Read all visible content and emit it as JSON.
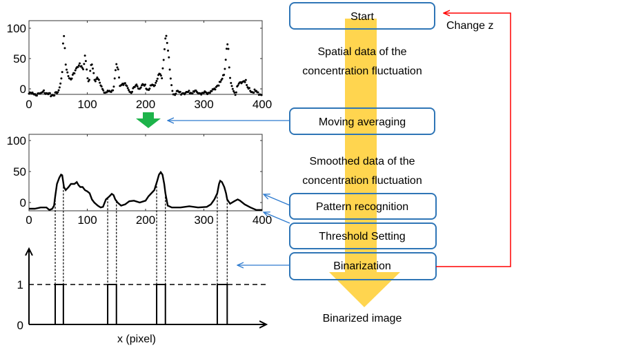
{
  "flowchart": {
    "steps": [
      {
        "label": "Start"
      },
      {
        "label": "Moving averaging"
      },
      {
        "label": "Pattern recognition"
      },
      {
        "label": "Threshold Setting"
      },
      {
        "label": "Binarization"
      }
    ],
    "notes": {
      "spatial_line1": "Spatial data of the",
      "spatial_line2": "concentration fluctuation",
      "smoothed_line1": "Smoothed data of the",
      "smoothed_line2": "concentration fluctuation",
      "output": "Binarized image"
    },
    "loop_label": "Change z",
    "colors": {
      "box": "#2E75B6",
      "flow_arrow": "#FFD54F",
      "loop": "#FF0000",
      "pointer": "#2E7BCF",
      "down_arrow": "#1DB34A"
    }
  },
  "chart_data": [
    {
      "type": "scatter",
      "xlim": [
        0,
        400
      ],
      "ylim": [
        -10,
        110
      ],
      "xticks": [
        "0",
        "100",
        "200",
        "300",
        "400"
      ],
      "yticks": [
        "0",
        "50",
        "100"
      ],
      "points": [
        [
          0,
          -8
        ],
        [
          10,
          -8
        ],
        [
          20,
          -10
        ],
        [
          25,
          0
        ],
        [
          30,
          -10
        ],
        [
          40,
          -10
        ],
        [
          50,
          -7
        ],
        [
          55,
          15
        ],
        [
          57,
          30
        ],
        [
          58,
          60
        ],
        [
          59,
          95
        ],
        [
          61,
          78
        ],
        [
          62,
          55
        ],
        [
          63,
          40
        ],
        [
          65,
          28
        ],
        [
          68,
          20
        ],
        [
          72,
          18
        ],
        [
          78,
          25
        ],
        [
          82,
          35
        ],
        [
          87,
          44
        ],
        [
          90,
          35
        ],
        [
          93,
          30
        ],
        [
          96,
          52
        ],
        [
          98,
          45
        ],
        [
          100,
          22
        ],
        [
          103,
          12
        ],
        [
          107,
          42
        ],
        [
          110,
          30
        ],
        [
          113,
          12
        ],
        [
          116,
          18
        ],
        [
          118,
          20
        ],
        [
          122,
          8
        ],
        [
          125,
          0
        ],
        [
          130,
          -5
        ],
        [
          140,
          -6
        ],
        [
          145,
          2
        ],
        [
          148,
          25
        ],
        [
          150,
          38
        ],
        [
          153,
          30
        ],
        [
          156,
          5
        ],
        [
          160,
          10
        ],
        [
          165,
          8
        ],
        [
          170,
          0
        ],
        [
          175,
          -5
        ],
        [
          180,
          0
        ],
        [
          185,
          5
        ],
        [
          190,
          2
        ],
        [
          195,
          6
        ],
        [
          200,
          4
        ],
        [
          205,
          -2
        ],
        [
          210,
          5
        ],
        [
          215,
          3
        ],
        [
          220,
          18
        ],
        [
          222,
          25
        ],
        [
          226,
          22
        ],
        [
          228,
          15
        ],
        [
          230,
          38
        ],
        [
          232,
          60
        ],
        [
          234,
          85
        ],
        [
          236,
          90
        ],
        [
          238,
          65
        ],
        [
          240,
          50
        ],
        [
          242,
          25
        ],
        [
          245,
          0
        ],
        [
          248,
          -8
        ],
        [
          255,
          -6
        ],
        [
          265,
          -7
        ],
        [
          280,
          -5
        ],
        [
          290,
          -6
        ],
        [
          300,
          -7
        ],
        [
          310,
          -6
        ],
        [
          318,
          -2
        ],
        [
          322,
          5
        ],
        [
          330,
          12
        ],
        [
          335,
          25
        ],
        [
          338,
          55
        ],
        [
          340,
          78
        ],
        [
          342,
          65
        ],
        [
          344,
          25
        ],
        [
          346,
          8
        ],
        [
          350,
          0
        ],
        [
          354,
          -8
        ],
        [
          358,
          5
        ],
        [
          362,
          10
        ],
        [
          368,
          14
        ],
        [
          372,
          12
        ],
        [
          375,
          0
        ],
        [
          380,
          -2
        ],
        [
          390,
          -5
        ],
        [
          400,
          -10
        ]
      ]
    },
    {
      "type": "line",
      "xlim": [
        0,
        400
      ],
      "ylim": [
        -10,
        110
      ],
      "xticks": [
        "0",
        "100",
        "200",
        "300",
        "400"
      ],
      "yticks": [
        "0",
        "50",
        "100"
      ],
      "points": [
        [
          0,
          -10
        ],
        [
          10,
          -10
        ],
        [
          20,
          -8
        ],
        [
          30,
          -8
        ],
        [
          35,
          -12
        ],
        [
          40,
          -10
        ],
        [
          43,
          -5
        ],
        [
          45,
          10
        ],
        [
          48,
          30
        ],
        [
          52,
          40
        ],
        [
          55,
          45
        ],
        [
          57,
          44
        ],
        [
          60,
          25
        ],
        [
          63,
          20
        ],
        [
          68,
          25
        ],
        [
          72,
          30
        ],
        [
          78,
          30
        ],
        [
          82,
          33
        ],
        [
          85,
          28
        ],
        [
          88,
          25
        ],
        [
          92,
          25
        ],
        [
          96,
          20
        ],
        [
          100,
          18
        ],
        [
          104,
          15
        ],
        [
          108,
          5
        ],
        [
          112,
          0
        ],
        [
          118,
          -5
        ],
        [
          123,
          -8
        ],
        [
          127,
          -7
        ],
        [
          132,
          5
        ],
        [
          138,
          10
        ],
        [
          142,
          14
        ],
        [
          145,
          12
        ],
        [
          148,
          5
        ],
        [
          152,
          0
        ],
        [
          158,
          -5
        ],
        [
          165,
          -3
        ],
        [
          172,
          2
        ],
        [
          180,
          3
        ],
        [
          190,
          0
        ],
        [
          200,
          3
        ],
        [
          205,
          10
        ],
        [
          210,
          15
        ],
        [
          215,
          20
        ],
        [
          220,
          35
        ],
        [
          223,
          45
        ],
        [
          226,
          49
        ],
        [
          229,
          45
        ],
        [
          232,
          30
        ],
        [
          234,
          15
        ],
        [
          238,
          -5
        ],
        [
          245,
          -8
        ],
        [
          260,
          -8
        ],
        [
          275,
          -6
        ],
        [
          290,
          -8
        ],
        [
          305,
          -7
        ],
        [
          312,
          -3
        ],
        [
          318,
          5
        ],
        [
          323,
          15
        ],
        [
          326,
          30
        ],
        [
          328,
          35
        ],
        [
          331,
          33
        ],
        [
          335,
          25
        ],
        [
          338,
          15
        ],
        [
          340,
          5
        ],
        [
          345,
          -2
        ],
        [
          352,
          2
        ],
        [
          358,
          5
        ],
        [
          362,
          3
        ],
        [
          370,
          -3
        ],
        [
          380,
          -8
        ],
        [
          390,
          -12
        ],
        [
          400,
          -12
        ]
      ]
    },
    {
      "type": "step",
      "xlabel": "x (pixel)",
      "yticks": [
        "0",
        "1"
      ],
      "threshold_level": 1,
      "pulses": [
        [
          45,
          59
        ],
        [
          135,
          150
        ],
        [
          219,
          234
        ],
        [
          323,
          340
        ]
      ]
    }
  ]
}
